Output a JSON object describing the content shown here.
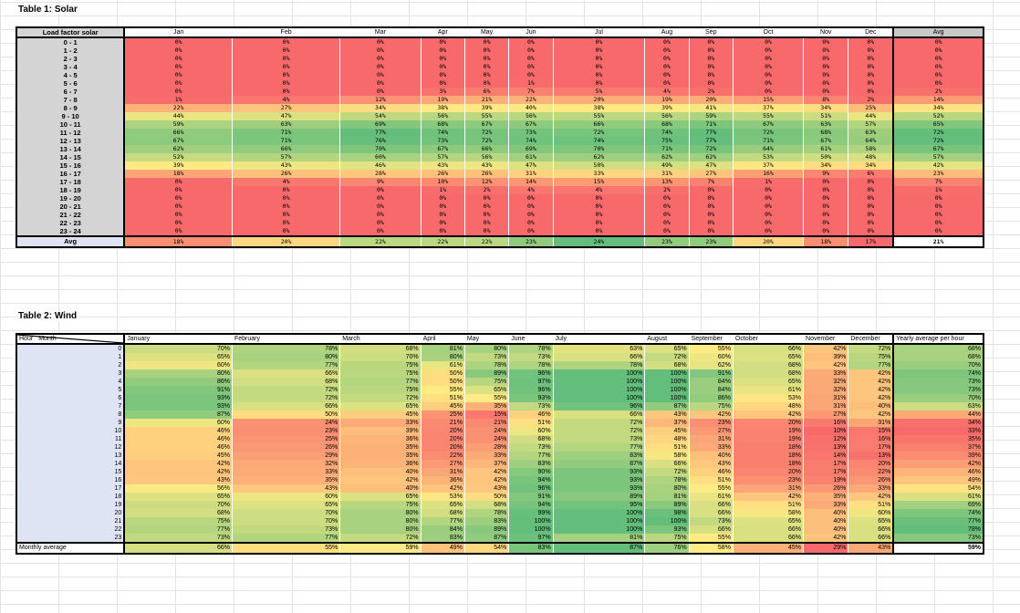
{
  "solar": {
    "caption": "Table 1: Solar",
    "corner_label": "Load factor solar",
    "months": [
      "Jan",
      "Feb",
      "Mar",
      "Apr",
      "May",
      "Jun",
      "Jul",
      "Aug",
      "Sep",
      "Oct",
      "Nov",
      "Dec"
    ],
    "avg_label": "Avg",
    "rows": [
      {
        "label": "0 - 1",
        "values": [
          "0%",
          "0%",
          "0%",
          "0%",
          "0%",
          "0%",
          "0%",
          "0%",
          "0%",
          "0%",
          "0%",
          "0%"
        ],
        "avg": "0%"
      },
      {
        "label": "1 - 2",
        "values": [
          "0%",
          "0%",
          "0%",
          "0%",
          "0%",
          "0%",
          "0%",
          "0%",
          "0%",
          "0%",
          "0%",
          "0%"
        ],
        "avg": "0%"
      },
      {
        "label": "2 - 3",
        "values": [
          "0%",
          "0%",
          "0%",
          "0%",
          "0%",
          "0%",
          "0%",
          "0%",
          "0%",
          "0%",
          "0%",
          "0%"
        ],
        "avg": "0%"
      },
      {
        "label": "3 - 4",
        "values": [
          "0%",
          "0%",
          "0%",
          "0%",
          "0%",
          "0%",
          "0%",
          "0%",
          "0%",
          "0%",
          "0%",
          "0%"
        ],
        "avg": "0%"
      },
      {
        "label": "4 - 5",
        "values": [
          "0%",
          "0%",
          "0%",
          "0%",
          "0%",
          "0%",
          "0%",
          "0%",
          "0%",
          "0%",
          "0%",
          "0%"
        ],
        "avg": "0%"
      },
      {
        "label": "5 - 6",
        "values": [
          "0%",
          "0%",
          "0%",
          "0%",
          "0%",
          "1%",
          "0%",
          "0%",
          "0%",
          "0%",
          "0%",
          "0%"
        ],
        "avg": "0%"
      },
      {
        "label": "6 - 7",
        "values": [
          "0%",
          "0%",
          "0%",
          "3%",
          "6%",
          "7%",
          "5%",
          "4%",
          "2%",
          "0%",
          "0%",
          "0%"
        ],
        "avg": "2%"
      },
      {
        "label": "7 - 8",
        "values": [
          "1%",
          "4%",
          "12%",
          "19%",
          "21%",
          "22%",
          "20%",
          "19%",
          "20%",
          "15%",
          "8%",
          "2%"
        ],
        "avg": "14%"
      },
      {
        "label": "8 - 9",
        "values": [
          "22%",
          "27%",
          "34%",
          "38%",
          "39%",
          "40%",
          "38%",
          "39%",
          "41%",
          "37%",
          "34%",
          "25%"
        ],
        "avg": "34%"
      },
      {
        "label": "9 - 10",
        "values": [
          "44%",
          "47%",
          "54%",
          "56%",
          "55%",
          "56%",
          "55%",
          "56%",
          "59%",
          "55%",
          "51%",
          "44%"
        ],
        "avg": "52%"
      },
      {
        "label": "10 - 11",
        "values": [
          "59%",
          "63%",
          "69%",
          "68%",
          "67%",
          "67%",
          "66%",
          "68%",
          "71%",
          "67%",
          "63%",
          "57%"
        ],
        "avg": "65%"
      },
      {
        "label": "11 - 12",
        "values": [
          "66%",
          "71%",
          "77%",
          "74%",
          "72%",
          "73%",
          "72%",
          "74%",
          "77%",
          "72%",
          "68%",
          "63%"
        ],
        "avg": "72%"
      },
      {
        "label": "12 - 13",
        "values": [
          "67%",
          "71%",
          "76%",
          "73%",
          "72%",
          "74%",
          "74%",
          "75%",
          "77%",
          "71%",
          "67%",
          "64%"
        ],
        "avg": "72%"
      },
      {
        "label": "13 - 14",
        "values": [
          "62%",
          "66%",
          "70%",
          "67%",
          "66%",
          "69%",
          "70%",
          "71%",
          "72%",
          "64%",
          "61%",
          "58%"
        ],
        "avg": "67%"
      },
      {
        "label": "14 - 15",
        "values": [
          "52%",
          "57%",
          "60%",
          "57%",
          "56%",
          "61%",
          "62%",
          "62%",
          "62%",
          "53%",
          "50%",
          "48%"
        ],
        "avg": "57%"
      },
      {
        "label": "15 - 16",
        "values": [
          "39%",
          "43%",
          "46%",
          "43%",
          "43%",
          "47%",
          "50%",
          "49%",
          "47%",
          "37%",
          "34%",
          "34%"
        ],
        "avg": "42%"
      },
      {
        "label": "16 - 17",
        "values": [
          "18%",
          "26%",
          "28%",
          "26%",
          "26%",
          "31%",
          "33%",
          "31%",
          "27%",
          "16%",
          "9%",
          "6%"
        ],
        "avg": "23%"
      },
      {
        "label": "17 - 18",
        "values": [
          "0%",
          "4%",
          "9%",
          "10%",
          "12%",
          "14%",
          "15%",
          "13%",
          "7%",
          "1%",
          "0%",
          "0%"
        ],
        "avg": "7%"
      },
      {
        "label": "18 - 19",
        "values": [
          "0%",
          "0%",
          "0%",
          "1%",
          "2%",
          "4%",
          "4%",
          "2%",
          "0%",
          "0%",
          "0%",
          "0%"
        ],
        "avg": "1%"
      },
      {
        "label": "19 - 20",
        "values": [
          "0%",
          "0%",
          "0%",
          "0%",
          "0%",
          "0%",
          "0%",
          "0%",
          "0%",
          "0%",
          "0%",
          "0%"
        ],
        "avg": "0%"
      },
      {
        "label": "20 - 21",
        "values": [
          "0%",
          "0%",
          "0%",
          "0%",
          "0%",
          "0%",
          "0%",
          "0%",
          "0%",
          "0%",
          "0%",
          "0%"
        ],
        "avg": "0%"
      },
      {
        "label": "21 - 22",
        "values": [
          "0%",
          "0%",
          "0%",
          "0%",
          "0%",
          "0%",
          "0%",
          "0%",
          "0%",
          "0%",
          "0%",
          "0%"
        ],
        "avg": "0%"
      },
      {
        "label": "22 - 23",
        "values": [
          "0%",
          "0%",
          "0%",
          "0%",
          "0%",
          "0%",
          "0%",
          "0%",
          "0%",
          "0%",
          "0%",
          "0%"
        ],
        "avg": "0%"
      },
      {
        "label": "23 - 24",
        "values": [
          "0%",
          "0%",
          "0%",
          "0%",
          "0%",
          "0%",
          "0%",
          "0%",
          "0%",
          "0%",
          "0%",
          "0%"
        ],
        "avg": "0%"
      }
    ],
    "footer": {
      "label": "Avg",
      "values": [
        "18%",
        "20%",
        "22%",
        "22%",
        "22%",
        "23%",
        "24%",
        "23%",
        "23%",
        "20%",
        "18%",
        "17%"
      ],
      "avg": "21%"
    }
  },
  "wind": {
    "caption": "Table 2: Wind",
    "corner_hour": "Hour",
    "corner_month": "Month",
    "months": [
      "January",
      "February",
      "March",
      "April",
      "May",
      "June",
      "July",
      "August",
      "September",
      "October",
      "November",
      "December"
    ],
    "avg_label": "Yearly average per hour",
    "rows": [
      {
        "label": "0",
        "values": [
          "70%",
          "78%",
          "68%",
          "81%",
          "80%",
          "78%",
          "63%",
          "65%",
          "55%",
          "66%",
          "42%",
          "72%"
        ],
        "avg": "68%"
      },
      {
        "label": "1",
        "values": [
          "65%",
          "80%",
          "70%",
          "80%",
          "73%",
          "73%",
          "66%",
          "72%",
          "60%",
          "65%",
          "39%",
          "75%"
        ],
        "avg": "68%"
      },
      {
        "label": "2",
        "values": [
          "60%",
          "77%",
          "75%",
          "61%",
          "78%",
          "78%",
          "78%",
          "68%",
          "62%",
          "68%",
          "42%",
          "77%"
        ],
        "avg": "70%"
      },
      {
        "label": "3",
        "values": [
          "80%",
          "66%",
          "75%",
          "50%",
          "89%",
          "96%",
          "100%",
          "100%",
          "91%",
          "68%",
          "33%",
          "42%"
        ],
        "avg": "74%"
      },
      {
        "label": "4",
        "values": [
          "86%",
          "68%",
          "77%",
          "50%",
          "75%",
          "97%",
          "100%",
          "100%",
          "84%",
          "65%",
          "32%",
          "42%"
        ],
        "avg": "73%"
      },
      {
        "label": "5",
        "values": [
          "91%",
          "72%",
          "75%",
          "55%",
          "65%",
          "96%",
          "100%",
          "100%",
          "84%",
          "61%",
          "32%",
          "42%"
        ],
        "avg": "73%"
      },
      {
        "label": "6",
        "values": [
          "93%",
          "72%",
          "72%",
          "51%",
          "55%",
          "93%",
          "100%",
          "100%",
          "86%",
          "53%",
          "31%",
          "42%"
        ],
        "avg": "70%"
      },
      {
        "label": "7",
        "values": [
          "93%",
          "66%",
          "65%",
          "45%",
          "35%",
          "73%",
          "96%",
          "87%",
          "75%",
          "48%",
          "31%",
          "40%"
        ],
        "avg": "63%"
      },
      {
        "label": "8",
        "values": [
          "87%",
          "50%",
          "45%",
          "25%",
          "15%",
          "46%",
          "66%",
          "43%",
          "42%",
          "42%",
          "27%",
          "42%"
        ],
        "avg": "44%"
      },
      {
        "label": "9",
        "values": [
          "60%",
          "24%",
          "33%",
          "21%",
          "21%",
          "51%",
          "72%",
          "37%",
          "23%",
          "20%",
          "16%",
          "31%"
        ],
        "avg": "34%"
      },
      {
        "label": "10",
        "values": [
          "46%",
          "23%",
          "39%",
          "20%",
          "24%",
          "60%",
          "72%",
          "45%",
          "27%",
          "19%",
          "10%",
          "15%"
        ],
        "avg": "33%"
      },
      {
        "label": "11",
        "values": [
          "46%",
          "25%",
          "36%",
          "20%",
          "24%",
          "68%",
          "73%",
          "48%",
          "31%",
          "19%",
          "12%",
          "16%"
        ],
        "avg": "35%"
      },
      {
        "label": "12",
        "values": [
          "46%",
          "26%",
          "35%",
          "20%",
          "28%",
          "73%",
          "77%",
          "51%",
          "33%",
          "18%",
          "13%",
          "17%"
        ],
        "avg": "37%"
      },
      {
        "label": "13",
        "values": [
          "45%",
          "29%",
          "35%",
          "22%",
          "33%",
          "77%",
          "83%",
          "58%",
          "40%",
          "18%",
          "14%",
          "13%"
        ],
        "avg": "39%"
      },
      {
        "label": "14",
        "values": [
          "42%",
          "32%",
          "36%",
          "27%",
          "37%",
          "83%",
          "87%",
          "66%",
          "43%",
          "18%",
          "17%",
          "20%"
        ],
        "avg": "42%"
      },
      {
        "label": "15",
        "values": [
          "42%",
          "33%",
          "40%",
          "31%",
          "42%",
          "90%",
          "93%",
          "72%",
          "46%",
          "20%",
          "17%",
          "22%"
        ],
        "avg": "46%"
      },
      {
        "label": "16",
        "values": [
          "43%",
          "35%",
          "42%",
          "36%",
          "42%",
          "94%",
          "93%",
          "78%",
          "51%",
          "23%",
          "19%",
          "26%"
        ],
        "avg": "49%"
      },
      {
        "label": "17",
        "values": [
          "56%",
          "43%",
          "40%",
          "42%",
          "43%",
          "96%",
          "93%",
          "80%",
          "55%",
          "31%",
          "26%",
          "33%"
        ],
        "avg": "54%"
      },
      {
        "label": "18",
        "values": [
          "65%",
          "60%",
          "65%",
          "53%",
          "50%",
          "91%",
          "89%",
          "81%",
          "61%",
          "42%",
          "35%",
          "42%"
        ],
        "avg": "61%"
      },
      {
        "label": "19",
        "values": [
          "70%",
          "65%",
          "75%",
          "65%",
          "68%",
          "94%",
          "95%",
          "89%",
          "66%",
          "51%",
          "33%",
          "51%"
        ],
        "avg": "69%"
      },
      {
        "label": "20",
        "values": [
          "68%",
          "70%",
          "80%",
          "68%",
          "78%",
          "99%",
          "100%",
          "98%",
          "66%",
          "58%",
          "40%",
          "60%"
        ],
        "avg": "74%"
      },
      {
        "label": "21",
        "values": [
          "75%",
          "70%",
          "80%",
          "77%",
          "83%",
          "100%",
          "100%",
          "100%",
          "73%",
          "65%",
          "40%",
          "65%"
        ],
        "avg": "77%"
      },
      {
        "label": "22",
        "values": [
          "77%",
          "73%",
          "80%",
          "84%",
          "89%",
          "100%",
          "100%",
          "93%",
          "66%",
          "66%",
          "40%",
          "66%"
        ],
        "avg": "78%"
      },
      {
        "label": "23",
        "values": [
          "73%",
          "77%",
          "72%",
          "83%",
          "87%",
          "97%",
          "81%",
          "75%",
          "55%",
          "66%",
          "42%",
          "66%"
        ],
        "avg": "73%"
      }
    ],
    "footer": {
      "label": "Monthly average",
      "values": [
        "66%",
        "55%",
        "59%",
        "49%",
        "54%",
        "83%",
        "87%",
        "76%",
        "58%",
        "45%",
        "29%",
        "43%"
      ],
      "avg": "59%"
    }
  }
}
